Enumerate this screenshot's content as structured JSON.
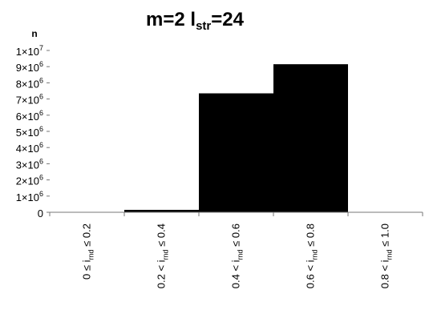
{
  "chart_data": {
    "type": "bar",
    "title": {
      "main": "m=2  l",
      "sub": "str",
      "tail": "=24"
    },
    "ylabel": "n",
    "xlabel": "",
    "ylim": [
      0,
      10000000
    ],
    "y_ticks": [
      {
        "value": 0,
        "base": "0",
        "exp": ""
      },
      {
        "value": 1000000,
        "base": "1×10",
        "exp": "6"
      },
      {
        "value": 2000000,
        "base": "2×10",
        "exp": "6"
      },
      {
        "value": 3000000,
        "base": "3×10",
        "exp": "6"
      },
      {
        "value": 4000000,
        "base": "4×10",
        "exp": "6"
      },
      {
        "value": 5000000,
        "base": "5×10",
        "exp": "6"
      },
      {
        "value": 6000000,
        "base": "6×10",
        "exp": "6"
      },
      {
        "value": 7000000,
        "base": "7×10",
        "exp": "6"
      },
      {
        "value": 8000000,
        "base": "8×10",
        "exp": "6"
      },
      {
        "value": 9000000,
        "base": "9×10",
        "exp": "6"
      },
      {
        "value": 10000000,
        "base": "1×10",
        "exp": "7"
      }
    ],
    "categories": [
      {
        "pre": "0 ≤ i",
        "sub": "rnd",
        "post": " ≤ 0.2"
      },
      {
        "pre": "0.2 < i",
        "sub": "rnd",
        "post": " ≤ 0.4"
      },
      {
        "pre": "0.4 < i",
        "sub": "rnd",
        "post": " ≤ 0.6"
      },
      {
        "pre": "0.6 < i",
        "sub": "rnd",
        "post": " ≤ 0.8"
      },
      {
        "pre": "0.8 < i",
        "sub": "rnd",
        "post": " ≤ 1.0"
      }
    ],
    "values": [
      0,
      150000,
      7350000,
      9150000,
      0
    ],
    "bar_color": "#000000",
    "grid": false,
    "legend": "none"
  }
}
